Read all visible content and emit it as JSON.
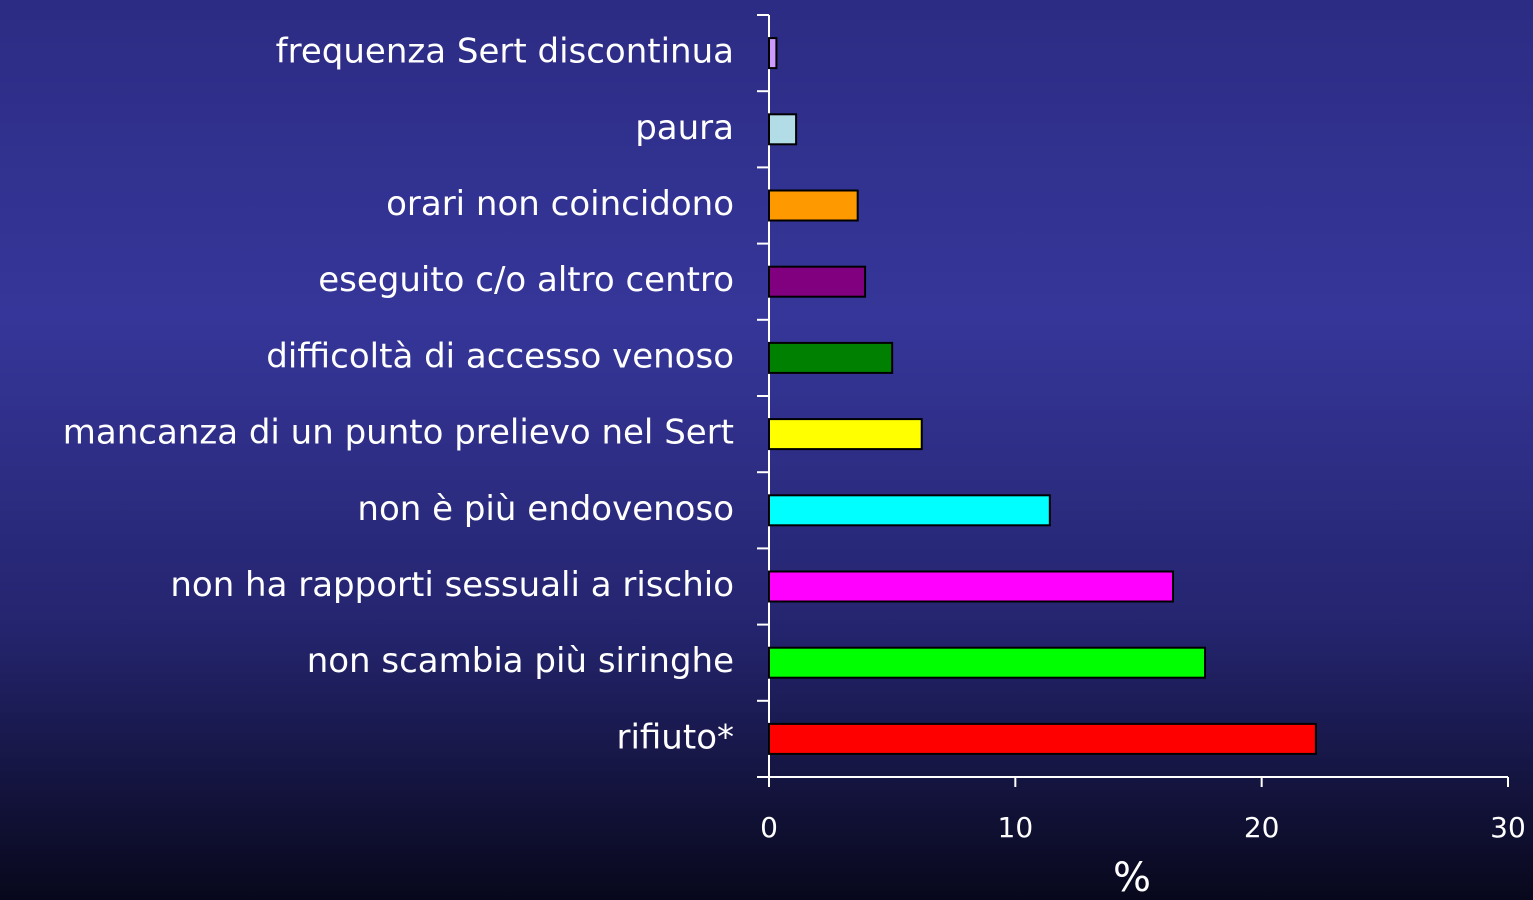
{
  "chart_data": {
    "type": "barh",
    "categories": [
      "frequenza Sert discontinua",
      "paura",
      "orari non coincidono",
      "eseguito c/o altro centro",
      "difficoltà di accesso venoso",
      "mancanza di un punto prelievo nel Sert",
      "non è più endovenoso",
      "non ha rapporti sessuali a rischio",
      "non scambia più siringhe",
      "rifiuto*"
    ],
    "values": [
      0.3,
      1.1,
      3.6,
      3.9,
      5.0,
      6.2,
      11.4,
      16.4,
      17.7,
      22.2
    ],
    "colors": [
      "#cc99ff",
      "#b3dde6",
      "#ff9900",
      "#800080",
      "#008000",
      "#ffff00",
      "#00ffff",
      "#ff00ff",
      "#00ff00",
      "#ff0000"
    ],
    "x_label": "%",
    "xlim": [
      0,
      30
    ],
    "xticks": [
      0,
      10,
      20,
      30
    ]
  }
}
